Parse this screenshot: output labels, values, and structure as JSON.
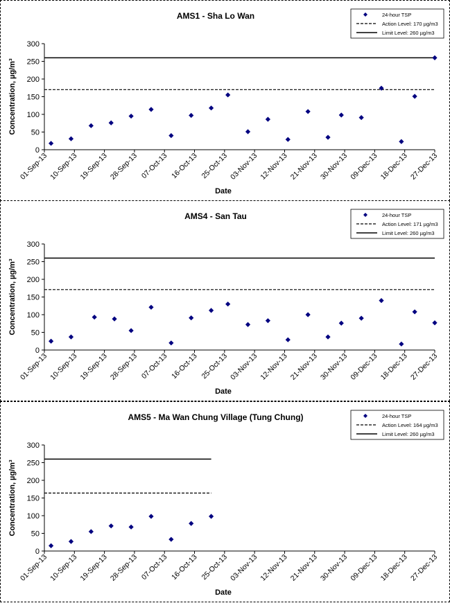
{
  "chart_data": [
    {
      "type": "scatter",
      "title": "AMS1 - Sha Lo Wan",
      "xlabel": "Date",
      "ylabel": "Concentration, µg/m³",
      "ylim": [
        0,
        300
      ],
      "yticks": [
        "0",
        "50",
        "100",
        "150",
        "200",
        "250",
        "300"
      ],
      "xlim": [
        "2013-09-01",
        "2013-12-27"
      ],
      "xticks": [
        "01-Sep-13",
        "10-Sep-13",
        "19-Sep-13",
        "28-Sep-13",
        "07-Oct-13",
        "16-Oct-13",
        "25-Oct-13",
        "03-Nov-13",
        "12-Nov-13",
        "21-Nov-13",
        "30-Nov-13",
        "09-Dec-13",
        "18-Dec-13",
        "27-Dec-13"
      ],
      "legend_position": "top-right",
      "series": [
        {
          "name": "24-hour TSP",
          "x": [
            "2013-09-03",
            "2013-09-09",
            "2013-09-15",
            "2013-09-21",
            "2013-09-27",
            "2013-10-03",
            "2013-10-09",
            "2013-10-15",
            "2013-10-21",
            "2013-10-26",
            "2013-11-01",
            "2013-11-07",
            "2013-11-13",
            "2013-11-19",
            "2013-11-25",
            "2013-11-29",
            "2013-12-05",
            "2013-12-11",
            "2013-12-17",
            "2013-12-21",
            "2013-12-27"
          ],
          "values": [
            18,
            31,
            68,
            76,
            95,
            114,
            40,
            97,
            118,
            155,
            51,
            86,
            29,
            108,
            35,
            98,
            91,
            174,
            23,
            151,
            260
          ]
        },
        {
          "name": "Action Level: 170 µg/m3",
          "x": [
            "2013-09-01",
            "2013-12-27"
          ],
          "values": [
            170,
            170
          ]
        },
        {
          "name": "Limit Level: 260 µg/m3",
          "x": [
            "2013-09-01",
            "2013-12-27"
          ],
          "values": [
            260,
            260
          ]
        }
      ]
    },
    {
      "type": "scatter",
      "title": "AMS4 - San Tau",
      "xlabel": "Date",
      "ylabel": "Concentration, µg/m³",
      "ylim": [
        0,
        300
      ],
      "yticks": [
        "0",
        "50",
        "100",
        "150",
        "200",
        "250",
        "300"
      ],
      "xlim": [
        "2013-09-01",
        "2013-12-27"
      ],
      "xticks": [
        "01-Sep-13",
        "10-Sep-13",
        "19-Sep-13",
        "28-Sep-13",
        "07-Oct-13",
        "16-Oct-13",
        "25-Oct-13",
        "03-Nov-13",
        "12-Nov-13",
        "21-Nov-13",
        "30-Nov-13",
        "09-Dec-13",
        "18-Dec-13",
        "27-Dec-13"
      ],
      "legend_position": "top-right",
      "series": [
        {
          "name": "24-hour TSP",
          "x": [
            "2013-09-03",
            "2013-09-09",
            "2013-09-16",
            "2013-09-22",
            "2013-09-27",
            "2013-10-03",
            "2013-10-09",
            "2013-10-15",
            "2013-10-21",
            "2013-10-26",
            "2013-11-01",
            "2013-11-07",
            "2013-11-13",
            "2013-11-19",
            "2013-11-25",
            "2013-11-29",
            "2013-12-05",
            "2013-12-11",
            "2013-12-17",
            "2013-12-21",
            "2013-12-27"
          ],
          "values": [
            25,
            37,
            93,
            88,
            55,
            121,
            20,
            91,
            112,
            130,
            72,
            83,
            29,
            100,
            37,
            76,
            90,
            140,
            17,
            108,
            77
          ]
        },
        {
          "name": "Action Level: 171 µg/m3",
          "x": [
            "2013-09-01",
            "2013-12-27"
          ],
          "values": [
            171,
            171
          ]
        },
        {
          "name": "Limit Level: 260 µg/m3",
          "x": [
            "2013-09-01",
            "2013-12-27"
          ],
          "values": [
            260,
            260
          ]
        }
      ]
    },
    {
      "type": "scatter",
      "title": "AMS5 - Ma Wan Chung Village (Tung Chung)",
      "xlabel": "Date",
      "ylabel": "Concentration, µg/m³",
      "ylim": [
        0,
        300
      ],
      "yticks": [
        "0",
        "50",
        "100",
        "150",
        "200",
        "250",
        "300"
      ],
      "xlim": [
        "2013-09-01",
        "2013-12-27"
      ],
      "xticks": [
        "01-Sep-13",
        "10-Sep-13",
        "19-Sep-13",
        "28-Sep-13",
        "07-Oct-13",
        "16-Oct-13",
        "25-Oct-13",
        "03-Nov-13",
        "12-Nov-13",
        "21-Nov-13",
        "30-Nov-13",
        "09-Dec-13",
        "18-Dec-13",
        "27-Dec-13"
      ],
      "legend_position": "top-right",
      "series": [
        {
          "name": "24-hour TSP",
          "x": [
            "2013-09-03",
            "2013-09-09",
            "2013-09-15",
            "2013-09-21",
            "2013-09-27",
            "2013-10-03",
            "2013-10-09",
            "2013-10-15",
            "2013-10-21"
          ],
          "values": [
            15,
            27,
            55,
            71,
            68,
            98,
            33,
            78,
            98
          ]
        },
        {
          "name": "Action Level: 164 µg/m3",
          "x": [
            "2013-09-01",
            "2013-10-21"
          ],
          "values": [
            164,
            164
          ]
        },
        {
          "name": "Limit Level: 260 µg/m3",
          "x": [
            "2013-09-01",
            "2013-10-21"
          ],
          "values": [
            260,
            260
          ]
        }
      ]
    }
  ],
  "colors": {
    "marker": "#000080",
    "lines": "#000000",
    "border": "#000000"
  }
}
